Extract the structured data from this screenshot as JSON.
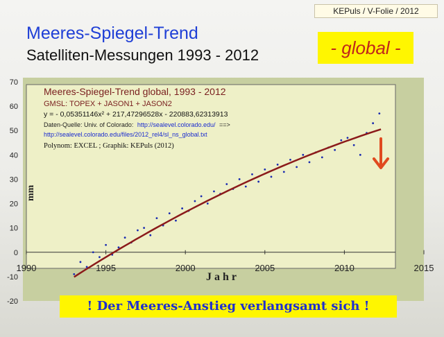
{
  "slide": {
    "credit": "KEPuls / V-Folie / 2012",
    "title": "Meeres-Spiegel-Trend",
    "subtitle": "Satelliten-Messungen 1993 - 2012",
    "badge": "- global -",
    "banner": "!  Der Meeres-Anstieg verlangsamt sich  !"
  },
  "chart_data": {
    "type": "scatter",
    "title": "Meeres-Spiegel-Trend global, 1993 - 2012",
    "annotations": {
      "series": "GMSL: TOPEX + JASON1 + JASON2",
      "equation": "y =  - 0,05351146x² + 217,47296528x - 220883,62313913",
      "source_label": "Daten-Quelle: Univ. of Colorado:",
      "source_url1": "http://sealevel.colorado.edu/",
      "source_arrow": "==>",
      "source_url2": "http://sealevel.colorado.edu/files/2012_rel4/sl_ns_global.txt",
      "credit": "Polynom: EXCEL ; Graphik: KEPuls (2012)"
    },
    "xlabel": "J a h r",
    "ylabel": "mm",
    "xlim": [
      1990,
      2015
    ],
    "ylim": [
      -20,
      70
    ],
    "xticks": [
      1990,
      1995,
      2000,
      2005,
      2010,
      2015
    ],
    "xtick_labels": [
      "1990",
      "1995",
      "2000",
      "2005",
      "2010",
      "2015"
    ],
    "yticks": [
      -20,
      -10,
      0,
      10,
      20,
      30,
      40,
      50,
      60,
      70
    ],
    "ytick_labels": [
      "-20",
      "-10",
      "0",
      "10",
      "20",
      "30",
      "40",
      "50",
      "60",
      "70"
    ],
    "grid": false,
    "trend": {
      "a": -0.05351146,
      "b": 217.47296528,
      "c": -220883.62313913,
      "x_range": [
        1993,
        2012.3
      ],
      "color": "#8b1a1a"
    },
    "scatter": {
      "x": [
        1993.0,
        1993.4,
        1993.8,
        1994.2,
        1994.6,
        1995.0,
        1995.4,
        1995.8,
        1996.2,
        1996.6,
        1997.0,
        1997.4,
        1997.8,
        1998.2,
        1998.6,
        1999.0,
        1999.4,
        1999.8,
        2000.2,
        2000.6,
        2001.0,
        2001.4,
        2001.8,
        2002.2,
        2002.6,
        2003.0,
        2003.4,
        2003.8,
        2004.2,
        2004.6,
        2005.0,
        2005.4,
        2005.8,
        2006.2,
        2006.6,
        2007.0,
        2007.4,
        2007.8,
        2008.2,
        2008.6,
        2009.0,
        2009.4,
        2009.8,
        2010.2,
        2010.6,
        2011.0,
        2011.4,
        2011.8,
        2012.2
      ],
      "y": [
        -9,
        -4,
        -6,
        0,
        -2,
        3,
        -1,
        2,
        6,
        4,
        9,
        10,
        7,
        14,
        11,
        16,
        13,
        18,
        17,
        21,
        23,
        20,
        25,
        24,
        28,
        26,
        30,
        27,
        32,
        29,
        34,
        31,
        36,
        33,
        38,
        35,
        40,
        37,
        41,
        39,
        43,
        42,
        46,
        47,
        44,
        40,
        49,
        53,
        57
      ],
      "color": "#1a2bb0"
    },
    "arrow_color": "#e04a1f"
  }
}
